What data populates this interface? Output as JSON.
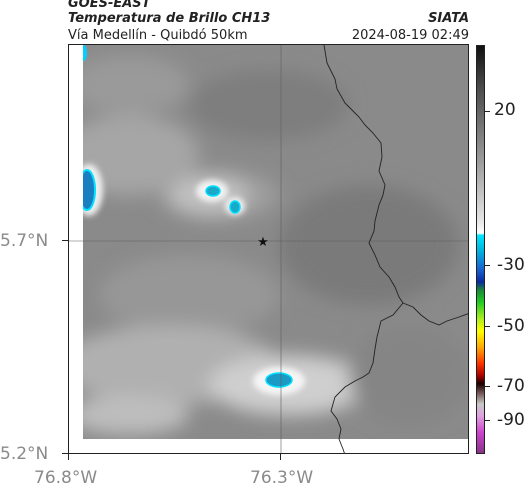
{
  "header": {
    "satellite": "GOES-EAST",
    "product": "Temperatura de Brillo CH13",
    "organization": "SIATA",
    "region": "Vía Medellín - Quibdó 50km",
    "datetime": "2024-08-19 02:49"
  },
  "map": {
    "y_labels": [
      "5.7°N",
      "5.2°N"
    ],
    "x_labels": [
      "76.8°W",
      "76.3°W"
    ],
    "marker": "location-star-marker"
  },
  "colorbar": {
    "labels": [
      "20",
      "-30",
      "-50",
      "-70",
      "-90"
    ],
    "colors": [
      "#111111",
      "#ffffff",
      "#00d0ff",
      "#0a2a9e",
      "#22cc22",
      "#ffff00",
      "#ff0000",
      "#1a0000",
      "#cc44cc"
    ]
  }
}
